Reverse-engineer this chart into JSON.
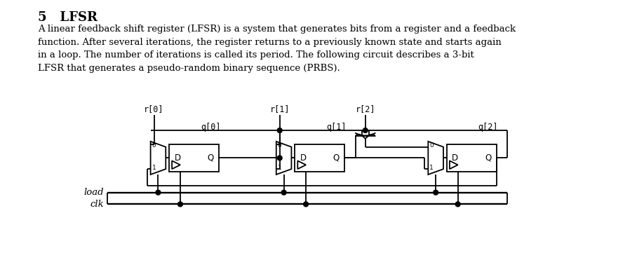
{
  "title": "5   LFSR",
  "paragraph": "A linear feedback shift register (LFSR) is a system that generates bits from a register and a feedback\nfunction. After several iterations, the register returns to a previously known state and starts again\nin a loop. The number of iterations is called its period. The following circuit describes a 3-bit\nLFSR that generates a pseudo-random binary sequence (PRBS).",
  "bg_color": "#ffffff",
  "text_color": "#000000",
  "line_color": "#000000",
  "title_fontsize": 13,
  "body_fontsize": 9.5,
  "ff_labels": [
    "q[0]",
    "q[1]",
    "q[2]"
  ],
  "r_labels": [
    "r[0]",
    "r[1]",
    "r[2]"
  ],
  "load_label": "load",
  "clk_label": "clk",
  "fig_w": 9.18,
  "fig_h": 3.81,
  "dpi": 100
}
